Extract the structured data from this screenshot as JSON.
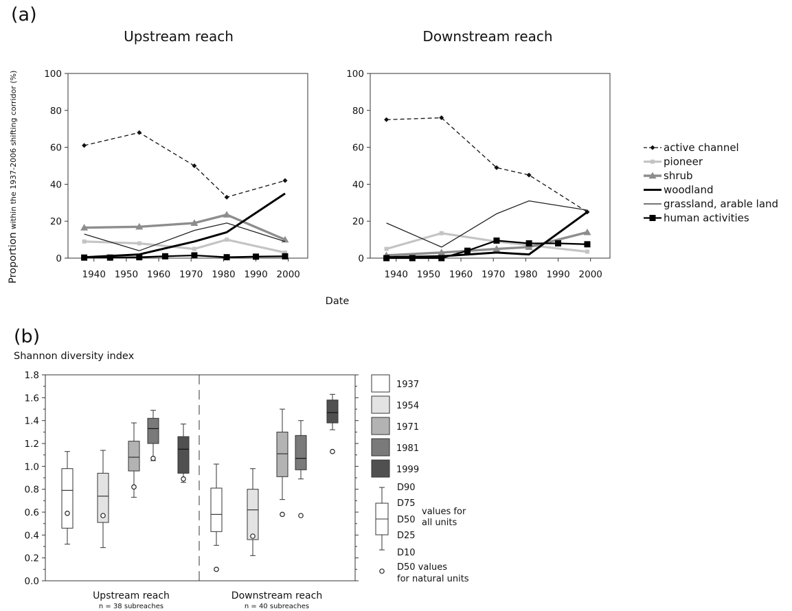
{
  "panel_a_label": "(a)",
  "panel_b_label": "(b)",
  "chart_data": [
    {
      "type": "line",
      "panel": "a",
      "title": "Upstream reach",
      "xlabel": "Date",
      "ylabel_main": "Proportion",
      "ylabel_sub": "within the 1937-2006 shifting corridor (%)",
      "xlim": [
        1932,
        2006
      ],
      "ylim": [
        0,
        100
      ],
      "x_ticks": [
        1940,
        1950,
        1960,
        1970,
        1980,
        1990,
        2000
      ],
      "y_ticks": [
        0,
        20,
        40,
        60,
        80,
        100
      ],
      "series": [
        {
          "name": "active channel",
          "color": "#111111",
          "x": [
            1937,
            1954,
            1971,
            1981,
            1999
          ],
          "y": [
            61,
            68,
            50,
            33,
            42
          ]
        },
        {
          "name": "pioneer",
          "color": "#c4c4c4",
          "x": [
            1937,
            1954,
            1971,
            1981,
            1999
          ],
          "y": [
            9,
            8,
            5,
            10,
            3
          ]
        },
        {
          "name": "shrub",
          "color": "#8d8d8d",
          "x": [
            1937,
            1954,
            1971,
            1981,
            1999
          ],
          "y": [
            16.5,
            17,
            19,
            23.5,
            10
          ]
        },
        {
          "name": "woodland",
          "color": "#000000",
          "x": [
            1937,
            1954,
            1971,
            1981,
            1999
          ],
          "y": [
            0.5,
            2,
            9,
            14,
            35
          ]
        },
        {
          "name": "grassland, arable land",
          "color": "#222222",
          "x": [
            1937,
            1954,
            1971,
            1981,
            1999
          ],
          "y": [
            13,
            4,
            15,
            19,
            9
          ]
        },
        {
          "name": "human activities",
          "color": "#000000",
          "x": [
            1937,
            1945,
            1954,
            1962,
            1971,
            1981,
            1990,
            1999
          ],
          "y": [
            0.3,
            0.3,
            0.5,
            1,
            1.5,
            0.5,
            0.8,
            1
          ]
        }
      ]
    },
    {
      "type": "line",
      "panel": "a",
      "title": "Downstream reach",
      "xlabel": "Date",
      "xlim": [
        1932,
        2006
      ],
      "ylim": [
        0,
        100
      ],
      "x_ticks": [
        1940,
        1950,
        1960,
        1970,
        1980,
        1990,
        2000
      ],
      "y_ticks": [
        0,
        20,
        40,
        60,
        80,
        100
      ],
      "series": [
        {
          "name": "active channel",
          "color": "#111111",
          "x": [
            1937,
            1954,
            1971,
            1981,
            1999
          ],
          "y": [
            75,
            76,
            49,
            45,
            25
          ]
        },
        {
          "name": "pioneer",
          "color": "#c4c4c4",
          "x": [
            1937,
            1954,
            1971,
            1981,
            1999
          ],
          "y": [
            5,
            13.5,
            9,
            7,
            3.5
          ]
        },
        {
          "name": "shrub",
          "color": "#8d8d8d",
          "x": [
            1937,
            1954,
            1971,
            1981,
            1999
          ],
          "y": [
            1.5,
            3,
            5,
            6,
            14
          ]
        },
        {
          "name": "woodland",
          "color": "#000000",
          "x": [
            1937,
            1954,
            1971,
            1981,
            1999
          ],
          "y": [
            0.5,
            1,
            3,
            2,
            25
          ]
        },
        {
          "name": "grassland, arable land",
          "color": "#222222",
          "x": [
            1937,
            1954,
            1971,
            1981,
            1999
          ],
          "y": [
            19,
            6,
            24,
            31,
            26
          ]
        },
        {
          "name": "human activities",
          "color": "#000000",
          "x": [
            1937,
            1945,
            1954,
            1962,
            1971,
            1981,
            1990,
            1999
          ],
          "y": [
            0,
            0,
            0,
            4,
            9.5,
            8,
            8,
            7.5
          ]
        }
      ]
    },
    {
      "type": "box",
      "panel": "b",
      "ylabel": "Shannon diversity index",
      "ylim": [
        0,
        1.8
      ],
      "y_ticks": [
        "0.0",
        "0.2",
        "0.4",
        "0.6",
        "0.8",
        "1.0",
        "1.2",
        "1.4",
        "1.6",
        "1.8"
      ],
      "groups": [
        {
          "label": "Upstream reach",
          "sublabel": "n = 38 subreaches"
        },
        {
          "label": "Downstream reach",
          "sublabel": "n = 40 subreaches"
        }
      ],
      "years": [
        {
          "year": "1937",
          "fill": "#ffffff"
        },
        {
          "year": "1954",
          "fill": "#e3e3e3"
        },
        {
          "year": "1971",
          "fill": "#b3b3b3"
        },
        {
          "year": "1981",
          "fill": "#7a7a7a"
        },
        {
          "year": "1999",
          "fill": "#505050"
        }
      ],
      "boxes": [
        {
          "group": 0,
          "year": 0,
          "d10": 0.32,
          "d25": 0.46,
          "d50": 0.79,
          "d75": 0.98,
          "d90": 1.13,
          "natural": 0.59
        },
        {
          "group": 0,
          "year": 1,
          "d10": 0.29,
          "d25": 0.51,
          "d50": 0.74,
          "d75": 0.94,
          "d90": 1.14,
          "natural": 0.57
        },
        {
          "group": 0,
          "year": 2,
          "d10": 0.73,
          "d25": 0.96,
          "d50": 1.08,
          "d75": 1.22,
          "d90": 1.38,
          "natural": 0.82
        },
        {
          "group": 0,
          "year": 3,
          "d10": 1.05,
          "d25": 1.2,
          "d50": 1.33,
          "d75": 1.42,
          "d90": 1.49,
          "natural": 1.07
        },
        {
          "group": 0,
          "year": 4,
          "d10": 0.86,
          "d25": 0.94,
          "d50": 1.15,
          "d75": 1.26,
          "d90": 1.37,
          "natural": 0.89
        },
        {
          "group": 1,
          "year": 0,
          "d10": 0.31,
          "d25": 0.43,
          "d50": 0.58,
          "d75": 0.81,
          "d90": 1.02,
          "natural": 0.1
        },
        {
          "group": 1,
          "year": 1,
          "d10": 0.22,
          "d25": 0.36,
          "d50": 0.62,
          "d75": 0.8,
          "d90": 0.98,
          "natural": 0.39
        },
        {
          "group": 1,
          "year": 2,
          "d10": 0.71,
          "d25": 0.91,
          "d50": 1.11,
          "d75": 1.3,
          "d90": 1.5,
          "natural": 0.58
        },
        {
          "group": 1,
          "year": 3,
          "d10": 0.89,
          "d25": 0.97,
          "d50": 1.07,
          "d75": 1.27,
          "d90": 1.4,
          "natural": 0.57
        },
        {
          "group": 1,
          "year": 4,
          "d10": 1.32,
          "d25": 1.38,
          "d50": 1.47,
          "d75": 1.58,
          "d90": 1.63,
          "natural": 1.13
        }
      ],
      "key": {
        "d90": "D90",
        "d75": "D75",
        "d50": "D50",
        "d25": "D25",
        "d10": "D10",
        "values_line1": "values for",
        "values_line2": "all units",
        "natural_line1": "D50 values",
        "natural_line2": "for natural units"
      }
    }
  ]
}
